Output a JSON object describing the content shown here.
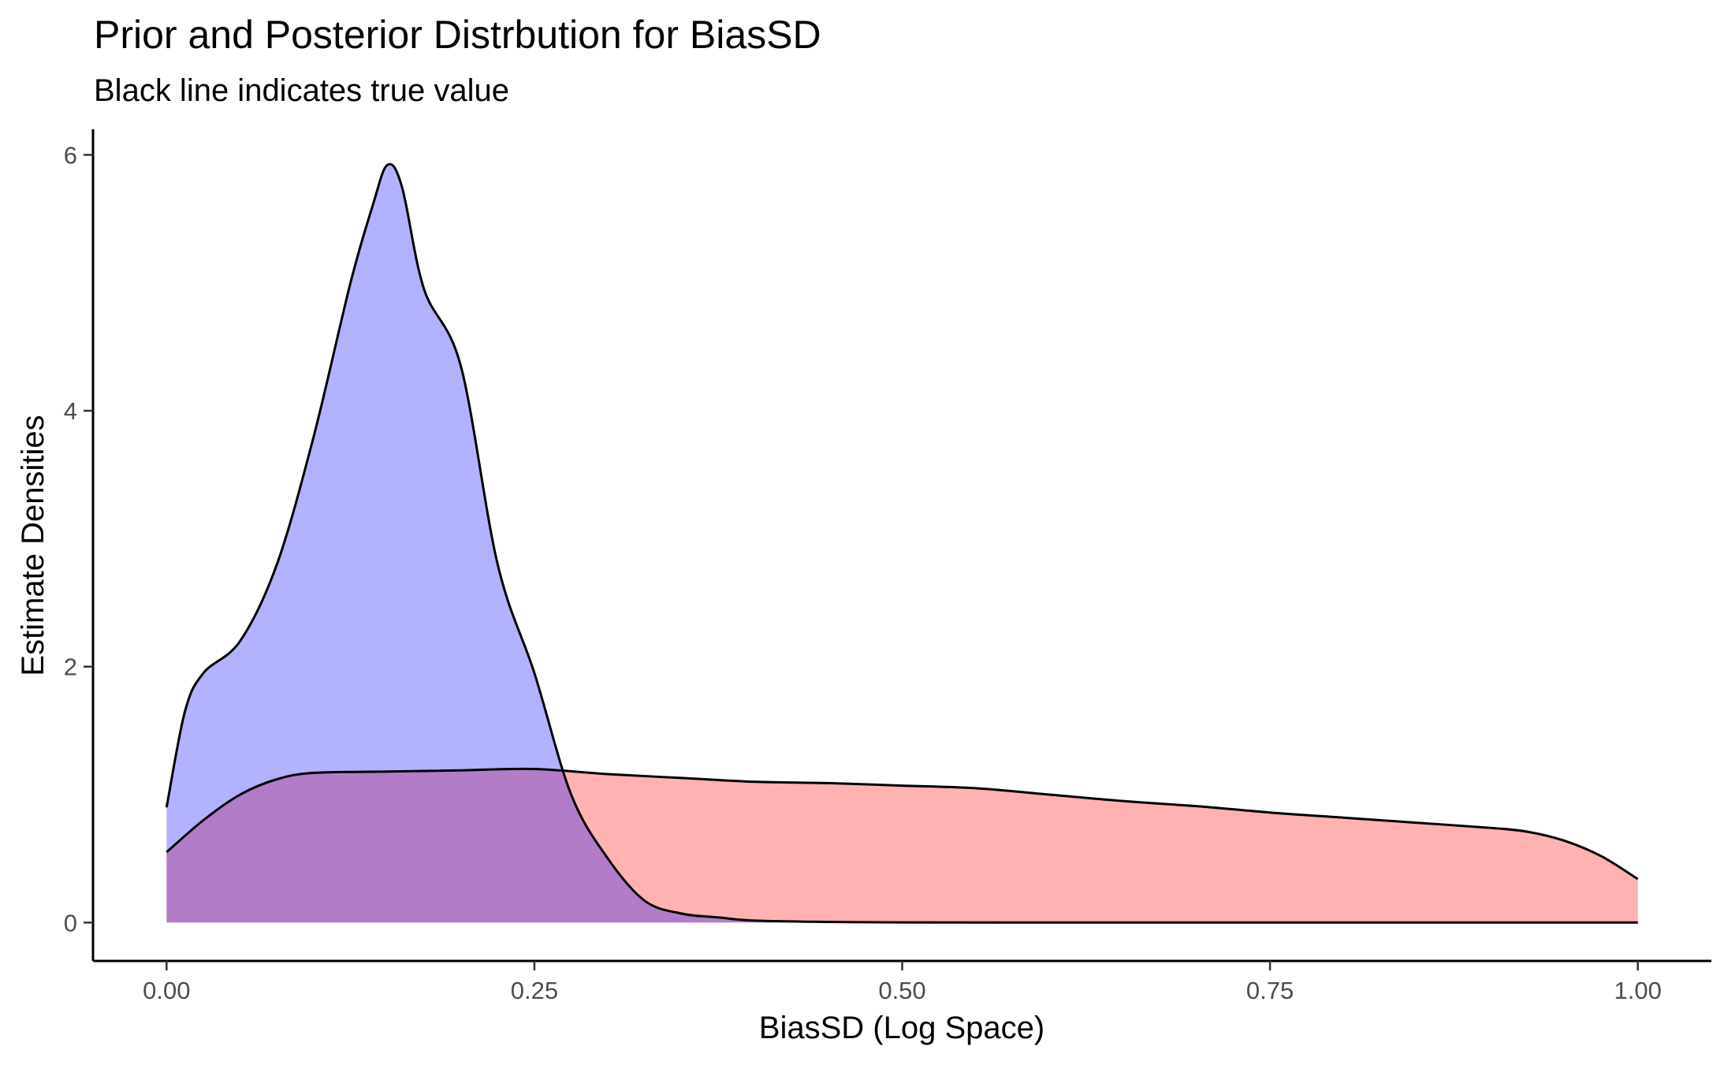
{
  "chart_data": {
    "type": "area",
    "title": "Prior and Posterior Distrbution for BiasSD",
    "subtitle": "Black line indicates true value",
    "xlabel": "BiasSD (Log Space)",
    "ylabel": "Estimate Densities",
    "xlim": [
      -0.05,
      1.05
    ],
    "ylim": [
      -0.3,
      6.2
    ],
    "x_ticks": [
      0,
      0.25,
      0.5,
      0.75,
      1
    ],
    "x_tick_labels": [
      "0.00",
      "0.25",
      "0.50",
      "0.75",
      "1.00"
    ],
    "y_ticks": [
      0,
      2,
      4,
      6
    ],
    "y_tick_labels": [
      "0",
      "2",
      "4",
      "6"
    ],
    "grid": false,
    "legend": "none",
    "series": [
      {
        "color": "#ff0000",
        "fill_opacity": 0.3,
        "x": [
          0.0,
          0.025,
          0.05,
          0.075,
          0.1,
          0.15,
          0.2,
          0.25,
          0.3,
          0.35,
          0.4,
          0.45,
          0.5,
          0.55,
          0.6,
          0.65,
          0.7,
          0.75,
          0.8,
          0.85,
          0.9,
          0.925,
          0.95,
          0.975,
          1.0
        ],
        "values": [
          0.55,
          0.8,
          1.0,
          1.12,
          1.17,
          1.18,
          1.19,
          1.2,
          1.16,
          1.13,
          1.1,
          1.09,
          1.07,
          1.05,
          1.0,
          0.95,
          0.91,
          0.86,
          0.82,
          0.78,
          0.74,
          0.71,
          0.64,
          0.52,
          0.34
        ]
      },
      {
        "color": "#0000ff",
        "fill_opacity": 0.3,
        "x": [
          0.0,
          0.0125,
          0.025,
          0.05,
          0.075,
          0.1,
          0.125,
          0.14,
          0.15,
          0.16,
          0.175,
          0.2,
          0.225,
          0.25,
          0.275,
          0.3,
          0.325,
          0.35,
          0.375,
          0.4,
          0.45,
          0.5,
          0.6,
          0.7,
          0.8,
          0.9,
          1.0
        ],
        "values": [
          0.9,
          1.65,
          1.95,
          2.2,
          2.8,
          3.8,
          5.0,
          5.6,
          5.92,
          5.75,
          4.95,
          4.35,
          2.8,
          1.95,
          1.0,
          0.5,
          0.17,
          0.07,
          0.04,
          0.015,
          0.005,
          0.001,
          0.0,
          0.0,
          0.0,
          0.0,
          0.0
        ]
      }
    ]
  }
}
